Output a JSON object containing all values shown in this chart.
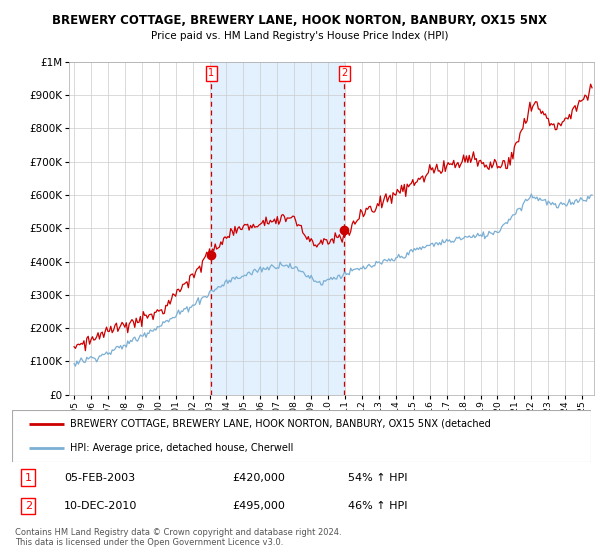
{
  "title": "BREWERY COTTAGE, BREWERY LANE, HOOK NORTON, BANBURY, OX15 5NX",
  "subtitle": "Price paid vs. HM Land Registry's House Price Index (HPI)",
  "legend_line1": "BREWERY COTTAGE, BREWERY LANE, HOOK NORTON, BANBURY, OX15 5NX (detached",
  "legend_line2": "HPI: Average price, detached house, Cherwell",
  "sale1_label": "1",
  "sale1_date": "05-FEB-2003",
  "sale1_price": "£420,000",
  "sale1_pct": "54% ↑ HPI",
  "sale2_label": "2",
  "sale2_date": "10-DEC-2010",
  "sale2_price": "£495,000",
  "sale2_pct": "46% ↑ HPI",
  "footer": "Contains HM Land Registry data © Crown copyright and database right 2024.\nThis data is licensed under the Open Government Licence v3.0.",
  "sale1_year": 2003.1,
  "sale2_year": 2010.95,
  "sale1_value": 420000,
  "sale2_value": 495000,
  "hpi_color": "#7bafd4",
  "price_color": "#cc0000",
  "bg_shade_color": "#ddeeff",
  "grid_color": "#cccccc",
  "ylim": [
    0,
    1000000
  ],
  "xlim_start": 1994.7,
  "xlim_end": 2025.7
}
